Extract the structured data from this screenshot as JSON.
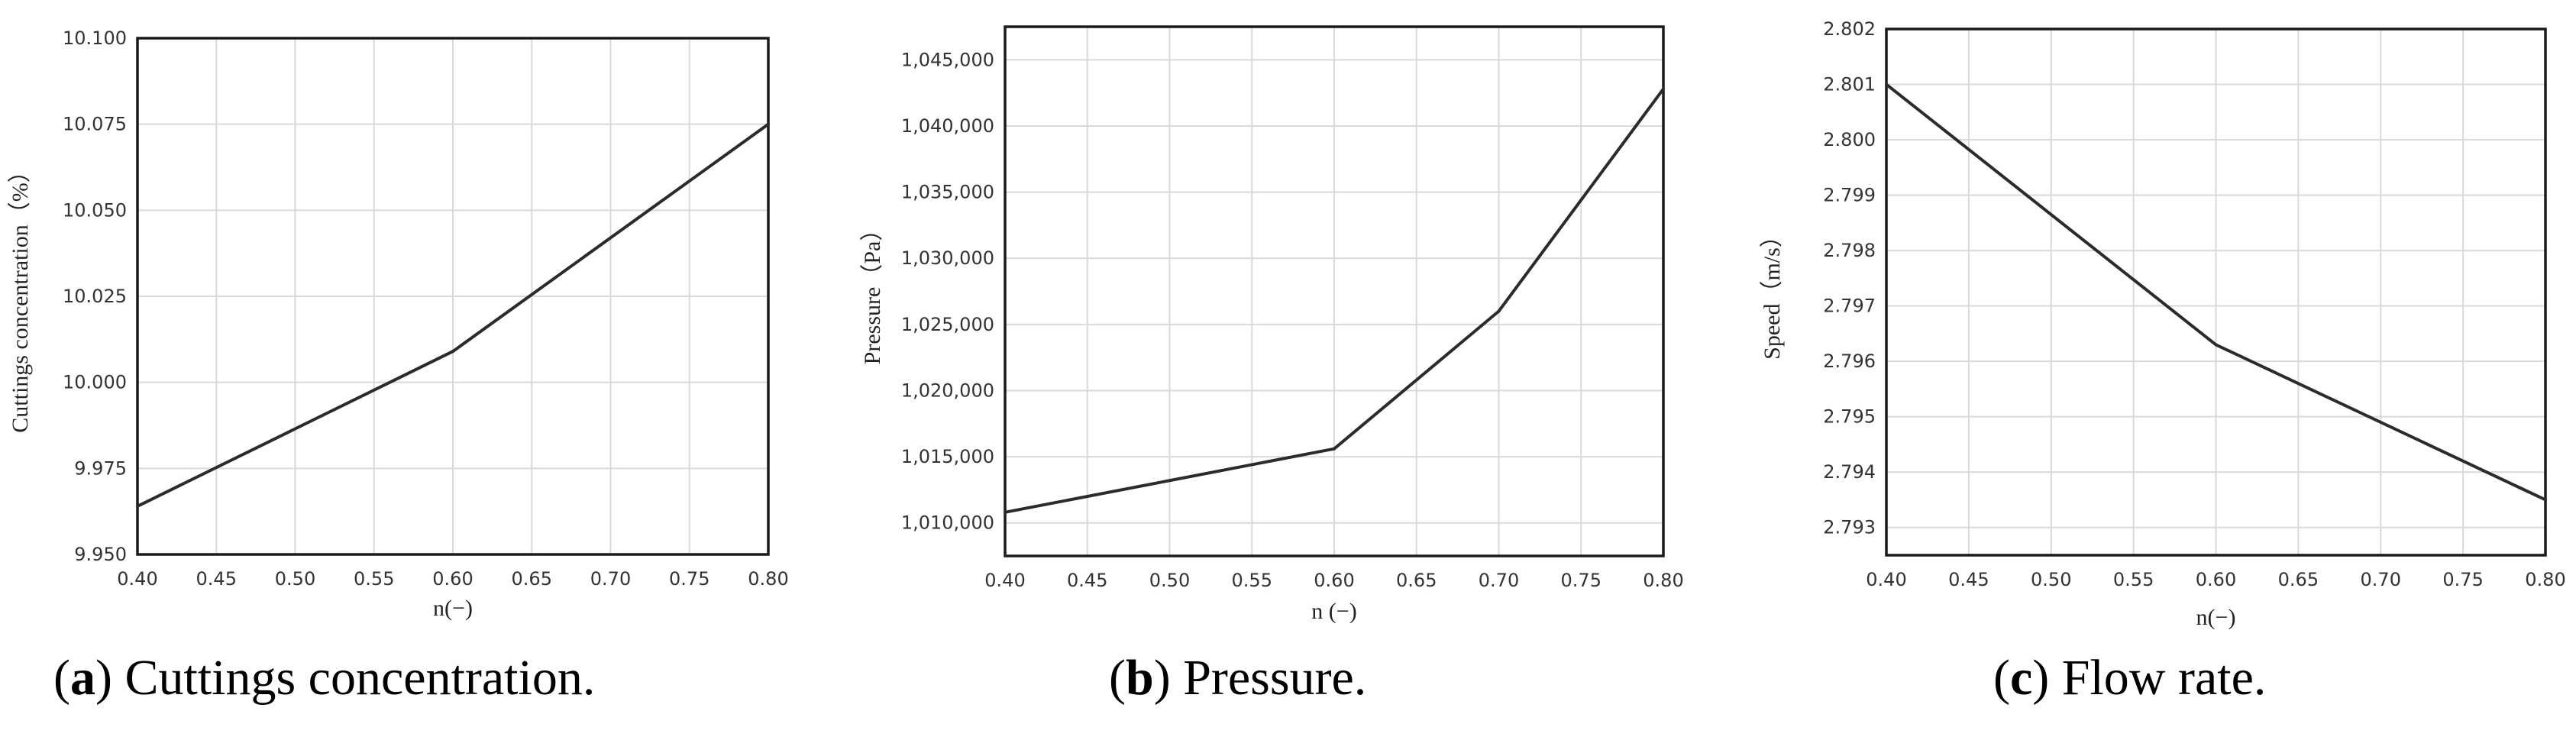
{
  "chart_data": [
    {
      "type": "line",
      "title": "",
      "xlabel": "n(−)",
      "ylabel": "Cuttings concentration（%）",
      "xlim": [
        0.4,
        0.8
      ],
      "ylim": [
        9.95,
        10.1
      ],
      "xticks": [
        "0.40",
        "0.45",
        "0.50",
        "0.55",
        "0.60",
        "0.65",
        "0.70",
        "0.75",
        "0.80"
      ],
      "yticks": [
        "9.950",
        "9.975",
        "10.000",
        "10.025",
        "10.050",
        "10.075",
        "10.100"
      ],
      "grid": true,
      "x": [
        0.4,
        0.6,
        0.8
      ],
      "y": [
        9.964,
        10.009,
        10.075
      ],
      "caption": {
        "letter": "a",
        "text": "Cuttings concentration."
      }
    },
    {
      "type": "line",
      "title": "",
      "xlabel": "n (−)",
      "ylabel": "Pressure（Pa）",
      "xlim": [
        0.4,
        0.8
      ],
      "ylim": [
        1007500,
        1047500
      ],
      "xticks": [
        "0.40",
        "0.45",
        "0.50",
        "0.55",
        "0.60",
        "0.65",
        "0.70",
        "0.75",
        "0.80"
      ],
      "yticks": [
        "1,010,000",
        "1,015,000",
        "1,020,000",
        "1,025,000",
        "1,030,000",
        "1,035,000",
        "1,040,000",
        "1,045,000"
      ],
      "grid": true,
      "x": [
        0.4,
        0.6,
        0.7,
        0.8
      ],
      "y": [
        1010800,
        1015600,
        1026000,
        1042800
      ],
      "caption": {
        "letter": "b",
        "text": "Pressure."
      }
    },
    {
      "type": "line",
      "title": "",
      "xlabel": "n(−)",
      "ylabel": "Speed（m/s）",
      "xlim": [
        0.4,
        0.8
      ],
      "ylim": [
        2.7925,
        2.802
      ],
      "xticks": [
        "0.40",
        "0.45",
        "0.50",
        "0.55",
        "0.60",
        "0.65",
        "0.70",
        "0.75",
        "0.80"
      ],
      "yticks": [
        "2.793",
        "2.794",
        "2.795",
        "2.796",
        "2.797",
        "2.798",
        "2.799",
        "2.800",
        "2.801",
        "2.802"
      ],
      "grid": true,
      "x": [
        0.4,
        0.6,
        0.8
      ],
      "y": [
        2.801,
        2.7963,
        2.7935
      ],
      "caption": {
        "letter": "c",
        "text": "Flow rate."
      }
    }
  ]
}
